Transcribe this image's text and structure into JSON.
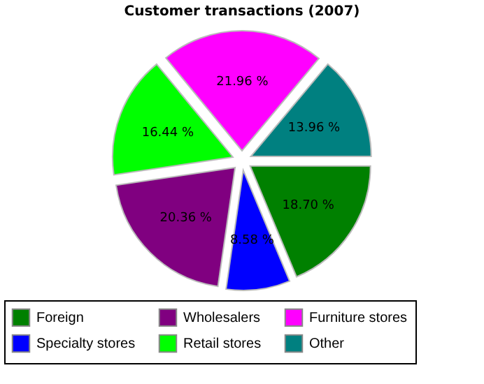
{
  "chart_data": {
    "type": "pie",
    "title": "Customer transactions (2007)",
    "categories": [
      "Foreign",
      "Specialty stores",
      "Wholesalers",
      "Retail stores",
      "Furniture stores",
      "Other"
    ],
    "values": [
      18.7,
      8.58,
      20.36,
      16.44,
      21.96,
      13.96
    ],
    "colors": [
      "#008000",
      "#0000ff",
      "#800080",
      "#00ff00",
      "#ff00ff",
      "#008080"
    ],
    "value_labels": [
      "18.70 %",
      "8.58 %",
      "20.36 %",
      "16.44 %",
      "21.96 %",
      "13.96 %"
    ],
    "legend": "bottom"
  }
}
